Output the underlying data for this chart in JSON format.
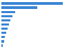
{
  "values": [
    100,
    58,
    22,
    18,
    15,
    12,
    10,
    8,
    6,
    4,
    2
  ],
  "bar_color": "#3a86d4",
  "background_color": "#ffffff",
  "xlim": [
    0,
    108
  ]
}
